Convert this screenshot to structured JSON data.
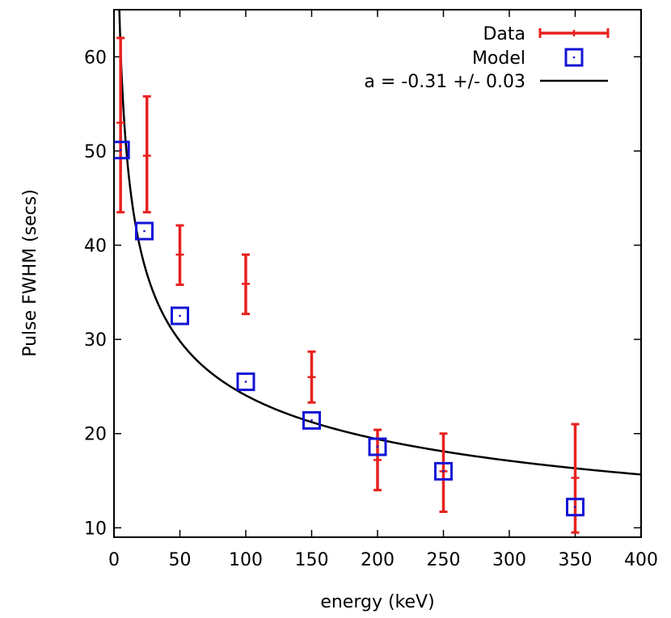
{
  "chart_data": {
    "type": "scatter",
    "title": "",
    "xlabel": "energy (keV)",
    "ylabel": "Pulse FWHM (secs)",
    "xlim": [
      0,
      400
    ],
    "ylim": [
      9,
      65
    ],
    "xticks": [
      0,
      50,
      100,
      150,
      200,
      250,
      300,
      350,
      400
    ],
    "yticks": [
      10,
      20,
      30,
      40,
      50,
      60
    ],
    "grid": false,
    "legend_position": "top-right",
    "series": [
      {
        "name": "Data",
        "kind": "errorbar",
        "color": "#e8211e",
        "points": [
          {
            "x": 5,
            "y": 53,
            "low": 43.5,
            "high": 62
          },
          {
            "x": 25,
            "y": 49.5,
            "low": 43.5,
            "high": 55.8
          },
          {
            "x": 50,
            "y": 39,
            "low": 35.8,
            "high": 42.1
          },
          {
            "x": 100,
            "y": 35.9,
            "low": 32.7,
            "high": 39
          },
          {
            "x": 150,
            "y": 26,
            "low": 23.3,
            "high": 28.7
          },
          {
            "x": 200,
            "y": 17.2,
            "low": 14,
            "high": 20.4
          },
          {
            "x": 250,
            "y": 16,
            "low": 11.7,
            "high": 20
          },
          {
            "x": 350,
            "y": 15.3,
            "low": 9.5,
            "high": 21
          }
        ]
      },
      {
        "name": "Model",
        "kind": "square",
        "color": "#1313d6",
        "points": [
          {
            "x": 5,
            "y": 50.1
          },
          {
            "x": 23,
            "y": 41.5
          },
          {
            "x": 50,
            "y": 32.5
          },
          {
            "x": 100,
            "y": 25.5
          },
          {
            "x": 150,
            "y": 21.4
          },
          {
            "x": 200,
            "y": 18.6
          },
          {
            "x": 250,
            "y": 16
          },
          {
            "x": 350,
            "y": 12.2
          }
        ]
      },
      {
        "name": "a = -0.31 +/- 0.03",
        "kind": "curve",
        "color": "#000000",
        "function": "power-law",
        "coefficient": 100.3,
        "exponent": -0.31,
        "x_range": [
          4,
          400
        ]
      }
    ]
  }
}
